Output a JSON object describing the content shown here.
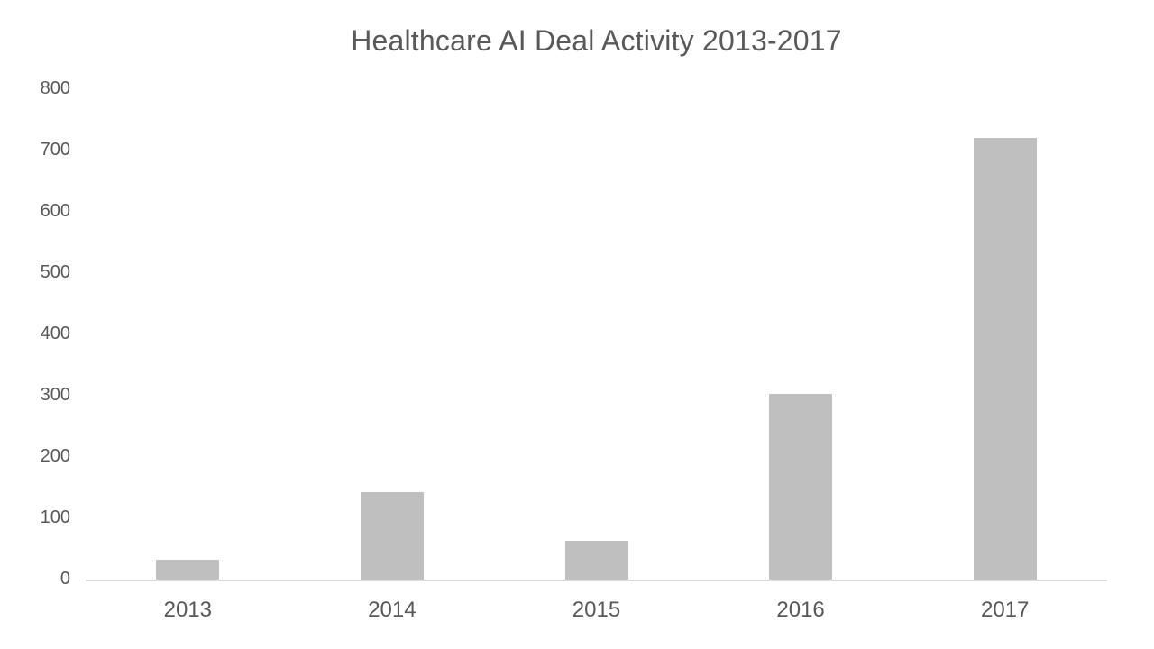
{
  "chart_data": {
    "type": "bar",
    "title": "Healthcare AI Deal Activity 2013-2017",
    "categories": [
      "2013",
      "2014",
      "2015",
      "2016",
      "2017"
    ],
    "values": [
      32,
      143,
      63,
      303,
      720
    ],
    "xlabel": "",
    "ylabel": "",
    "ylim": [
      0,
      800
    ],
    "yticks": [
      0,
      100,
      200,
      300,
      400,
      500,
      600,
      700,
      800
    ],
    "grid": false,
    "legend": false,
    "colors": {
      "bar": "#bfbfbf",
      "text": "#595959",
      "axis_line": "#d9d9d9",
      "background": "#ffffff"
    }
  }
}
